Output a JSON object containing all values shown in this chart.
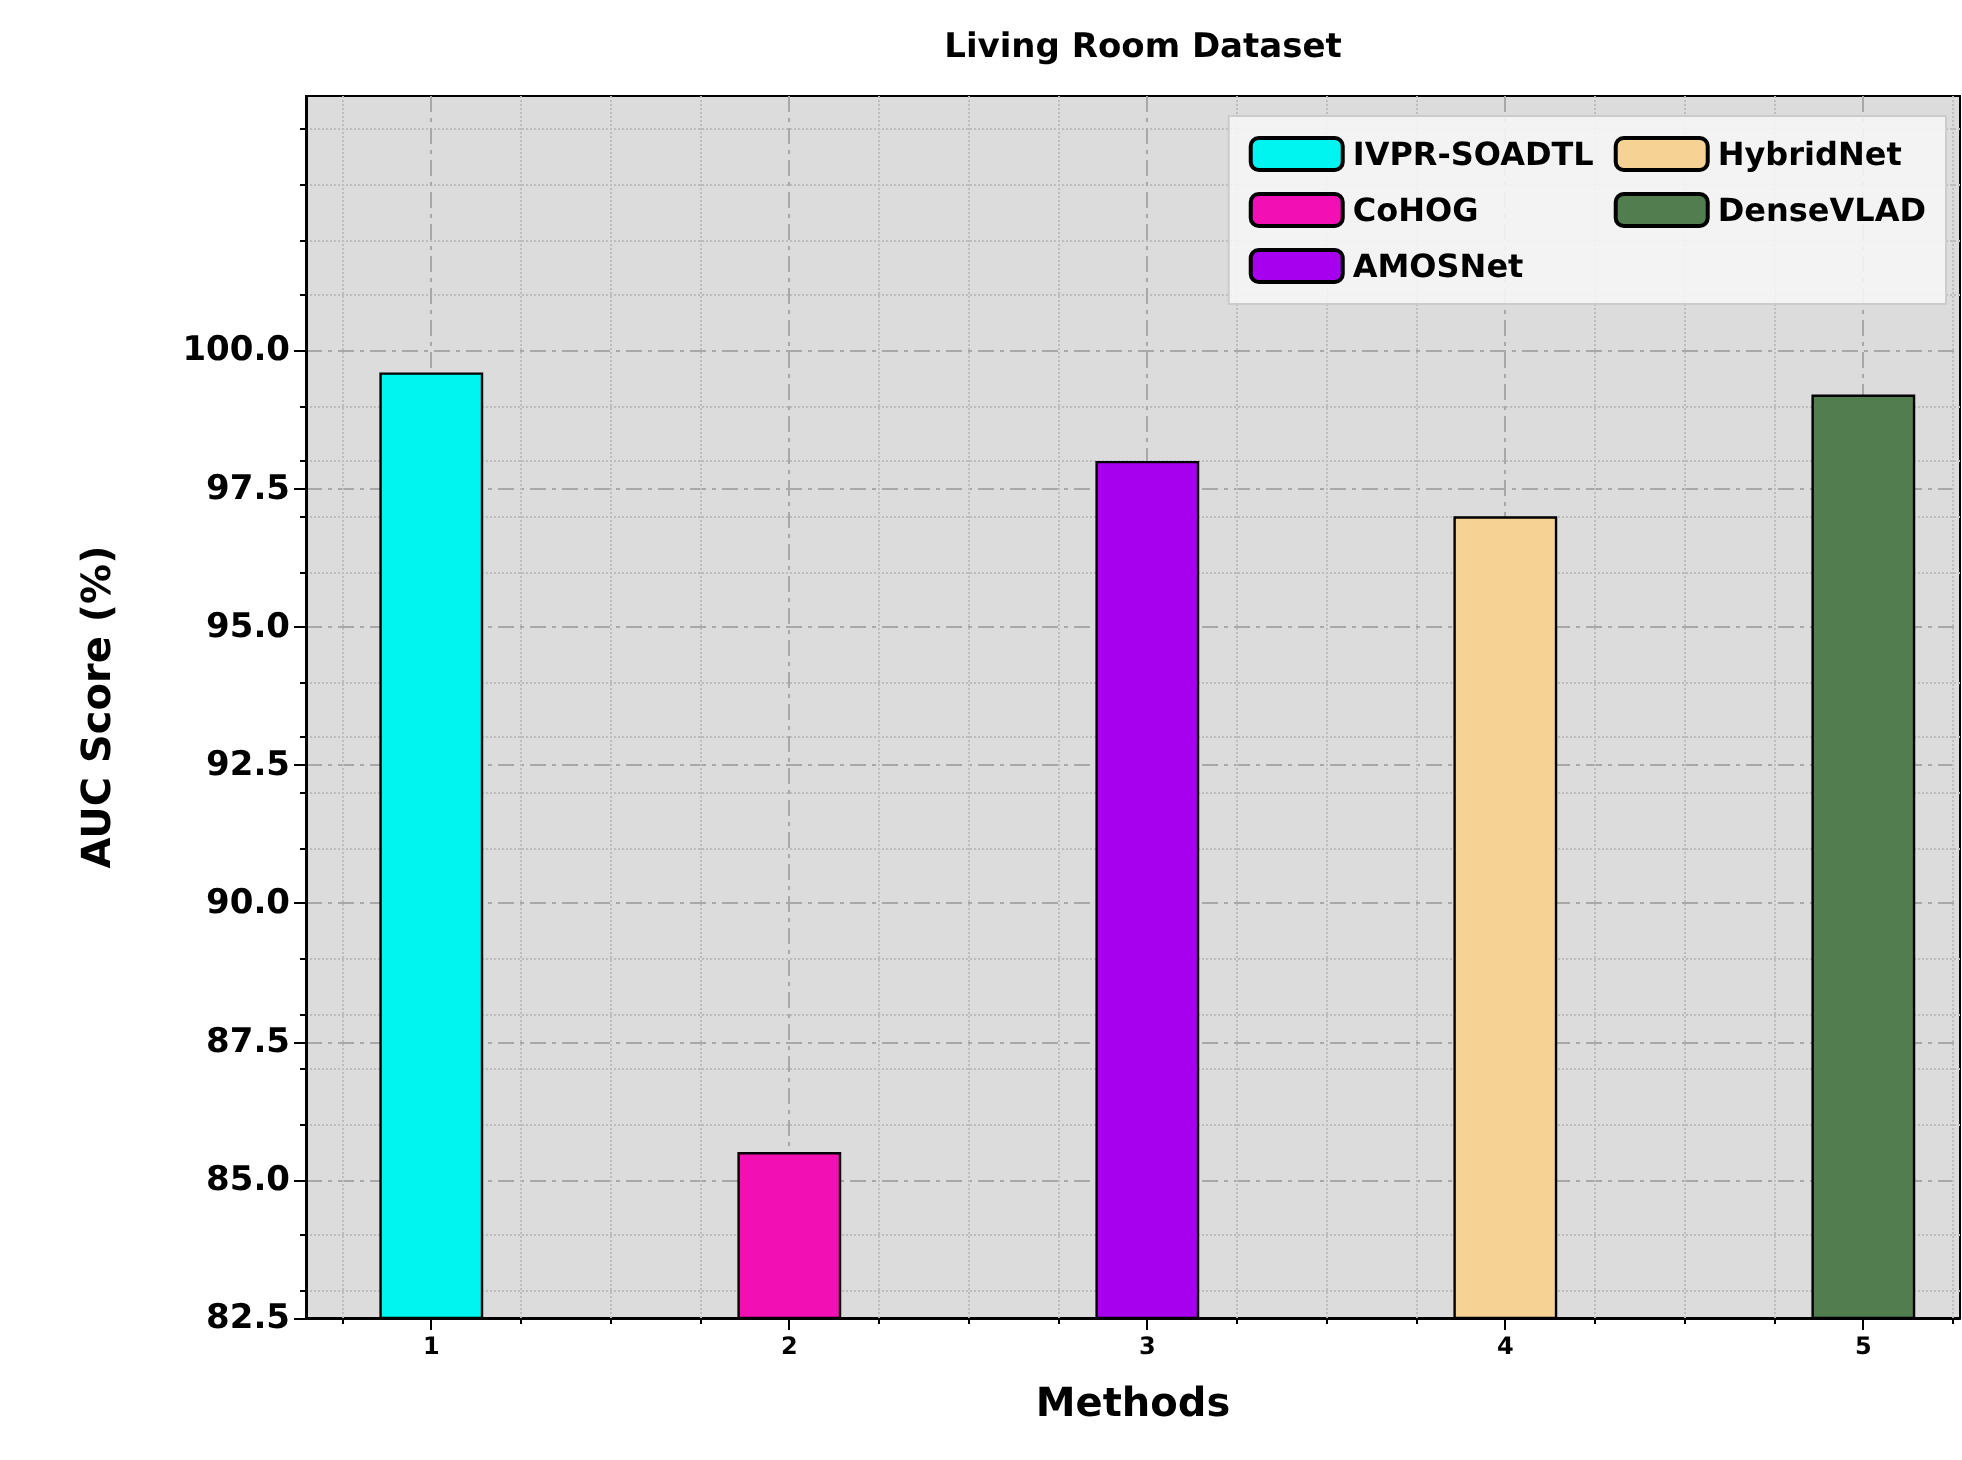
{
  "chart_data": {
    "type": "bar",
    "title": "Living Room Dataset",
    "xlabel": "Methods",
    "ylabel": "AUC Score (%)",
    "series": [
      {
        "name": "IVPR-SOADTL",
        "color": "#00f5f0",
        "x": [
          1
        ],
        "values": [
          99.6
        ]
      },
      {
        "name": "CoHOG",
        "color": "#f20fb4",
        "x": [
          2
        ],
        "values": [
          85.5
        ]
      },
      {
        "name": "AMOSNet",
        "color": "#a600ef",
        "x": [
          3
        ],
        "values": [
          98.0
        ]
      },
      {
        "name": "HybridNet",
        "color": "#f6d394",
        "x": [
          4
        ],
        "values": [
          97.0
        ]
      },
      {
        "name": "DenseVLAD",
        "color": "#527d4f",
        "x": [
          5
        ],
        "values": [
          99.2
        ]
      }
    ],
    "xlim": [
      0.65,
      5.27
    ],
    "xticks": [
      1,
      2,
      3,
      4,
      5
    ],
    "ylim": [
      82.5,
      104.6
    ],
    "yticks": [
      82.5,
      {
        "value": 85,
        "label": "85.0"
      },
      87.5,
      {
        "value": 90,
        "label": "90.0"
      },
      92.5,
      {
        "value": 95,
        "label": "95.0"
      },
      97.5,
      {
        "value": 100,
        "label": "100.0"
      }
    ],
    "grid": true,
    "legend": "top right"
  }
}
